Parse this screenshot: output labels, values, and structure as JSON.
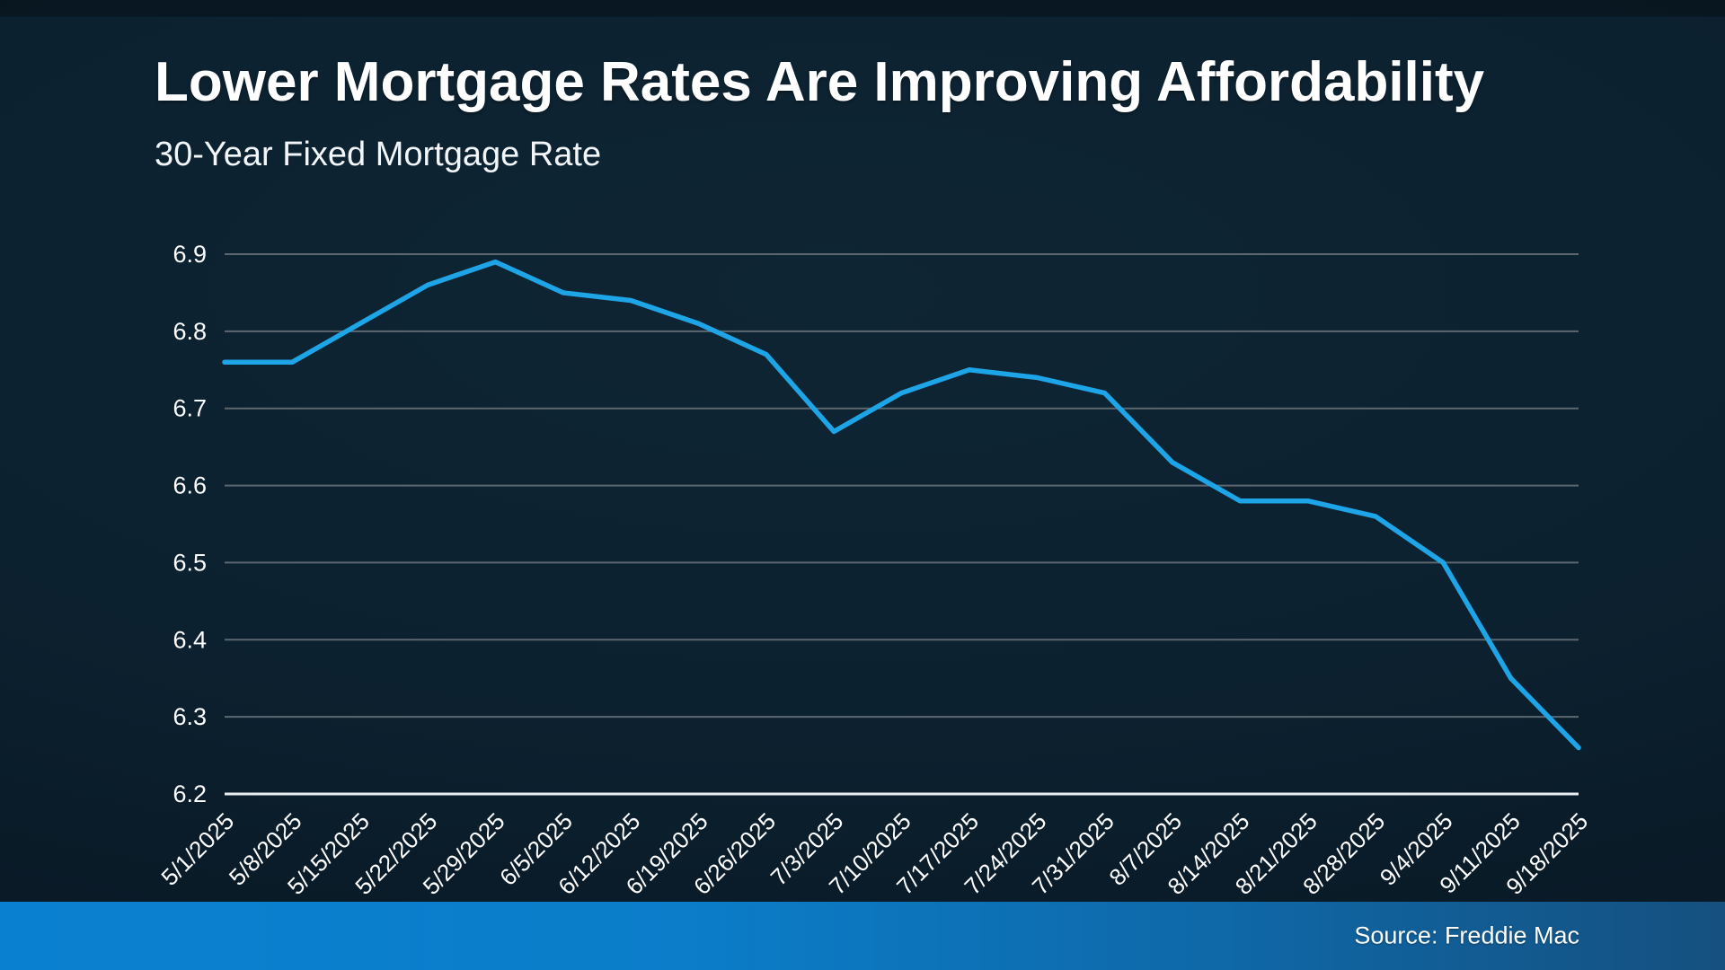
{
  "header": {
    "title": "Lower Mortgage Rates Are Improving Affordability",
    "subtitle": "30-Year Fixed Mortgage Rate"
  },
  "footer": {
    "source": "Source: Freddie Mac"
  },
  "colors": {
    "background": "#0c2130",
    "text": "#ffffff",
    "line": "#1da5e8",
    "gridline": "#5d6770",
    "axis_baseline": "#e8eef2",
    "footer_bar_left": "#0a81d0",
    "footer_bar_right": "#15507f"
  },
  "chart_data": {
    "type": "line",
    "title": "Lower Mortgage Rates Are Improving Affordability",
    "subtitle": "30-Year Fixed Mortgage Rate",
    "x": [
      "5/1/2025",
      "5/8/2025",
      "5/15/2025",
      "5/22/2025",
      "5/29/2025",
      "6/5/2025",
      "6/12/2025",
      "6/19/2025",
      "6/26/2025",
      "7/3/2025",
      "7/10/2025",
      "7/17/2025",
      "7/24/2025",
      "7/31/2025",
      "8/7/2025",
      "8/14/2025",
      "8/21/2025",
      "8/28/2025",
      "9/4/2025",
      "9/11/2025",
      "9/18/2025"
    ],
    "series": [
      {
        "name": "30-Year Fixed Mortgage Rate",
        "values": [
          6.76,
          6.76,
          6.81,
          6.86,
          6.89,
          6.85,
          6.84,
          6.81,
          6.77,
          6.67,
          6.72,
          6.75,
          6.74,
          6.72,
          6.63,
          6.58,
          6.58,
          6.56,
          6.5,
          6.35,
          6.26
        ]
      }
    ],
    "xlabel": "",
    "ylabel": "",
    "ylim": [
      6.2,
      6.9
    ],
    "ytick_step": 0.1,
    "ytick_labels": [
      "6.2",
      "6.3",
      "6.4",
      "6.5",
      "6.6",
      "6.7",
      "6.8",
      "6.9"
    ],
    "grid": true,
    "legend": false,
    "source": "Source: Freddie Mac"
  }
}
